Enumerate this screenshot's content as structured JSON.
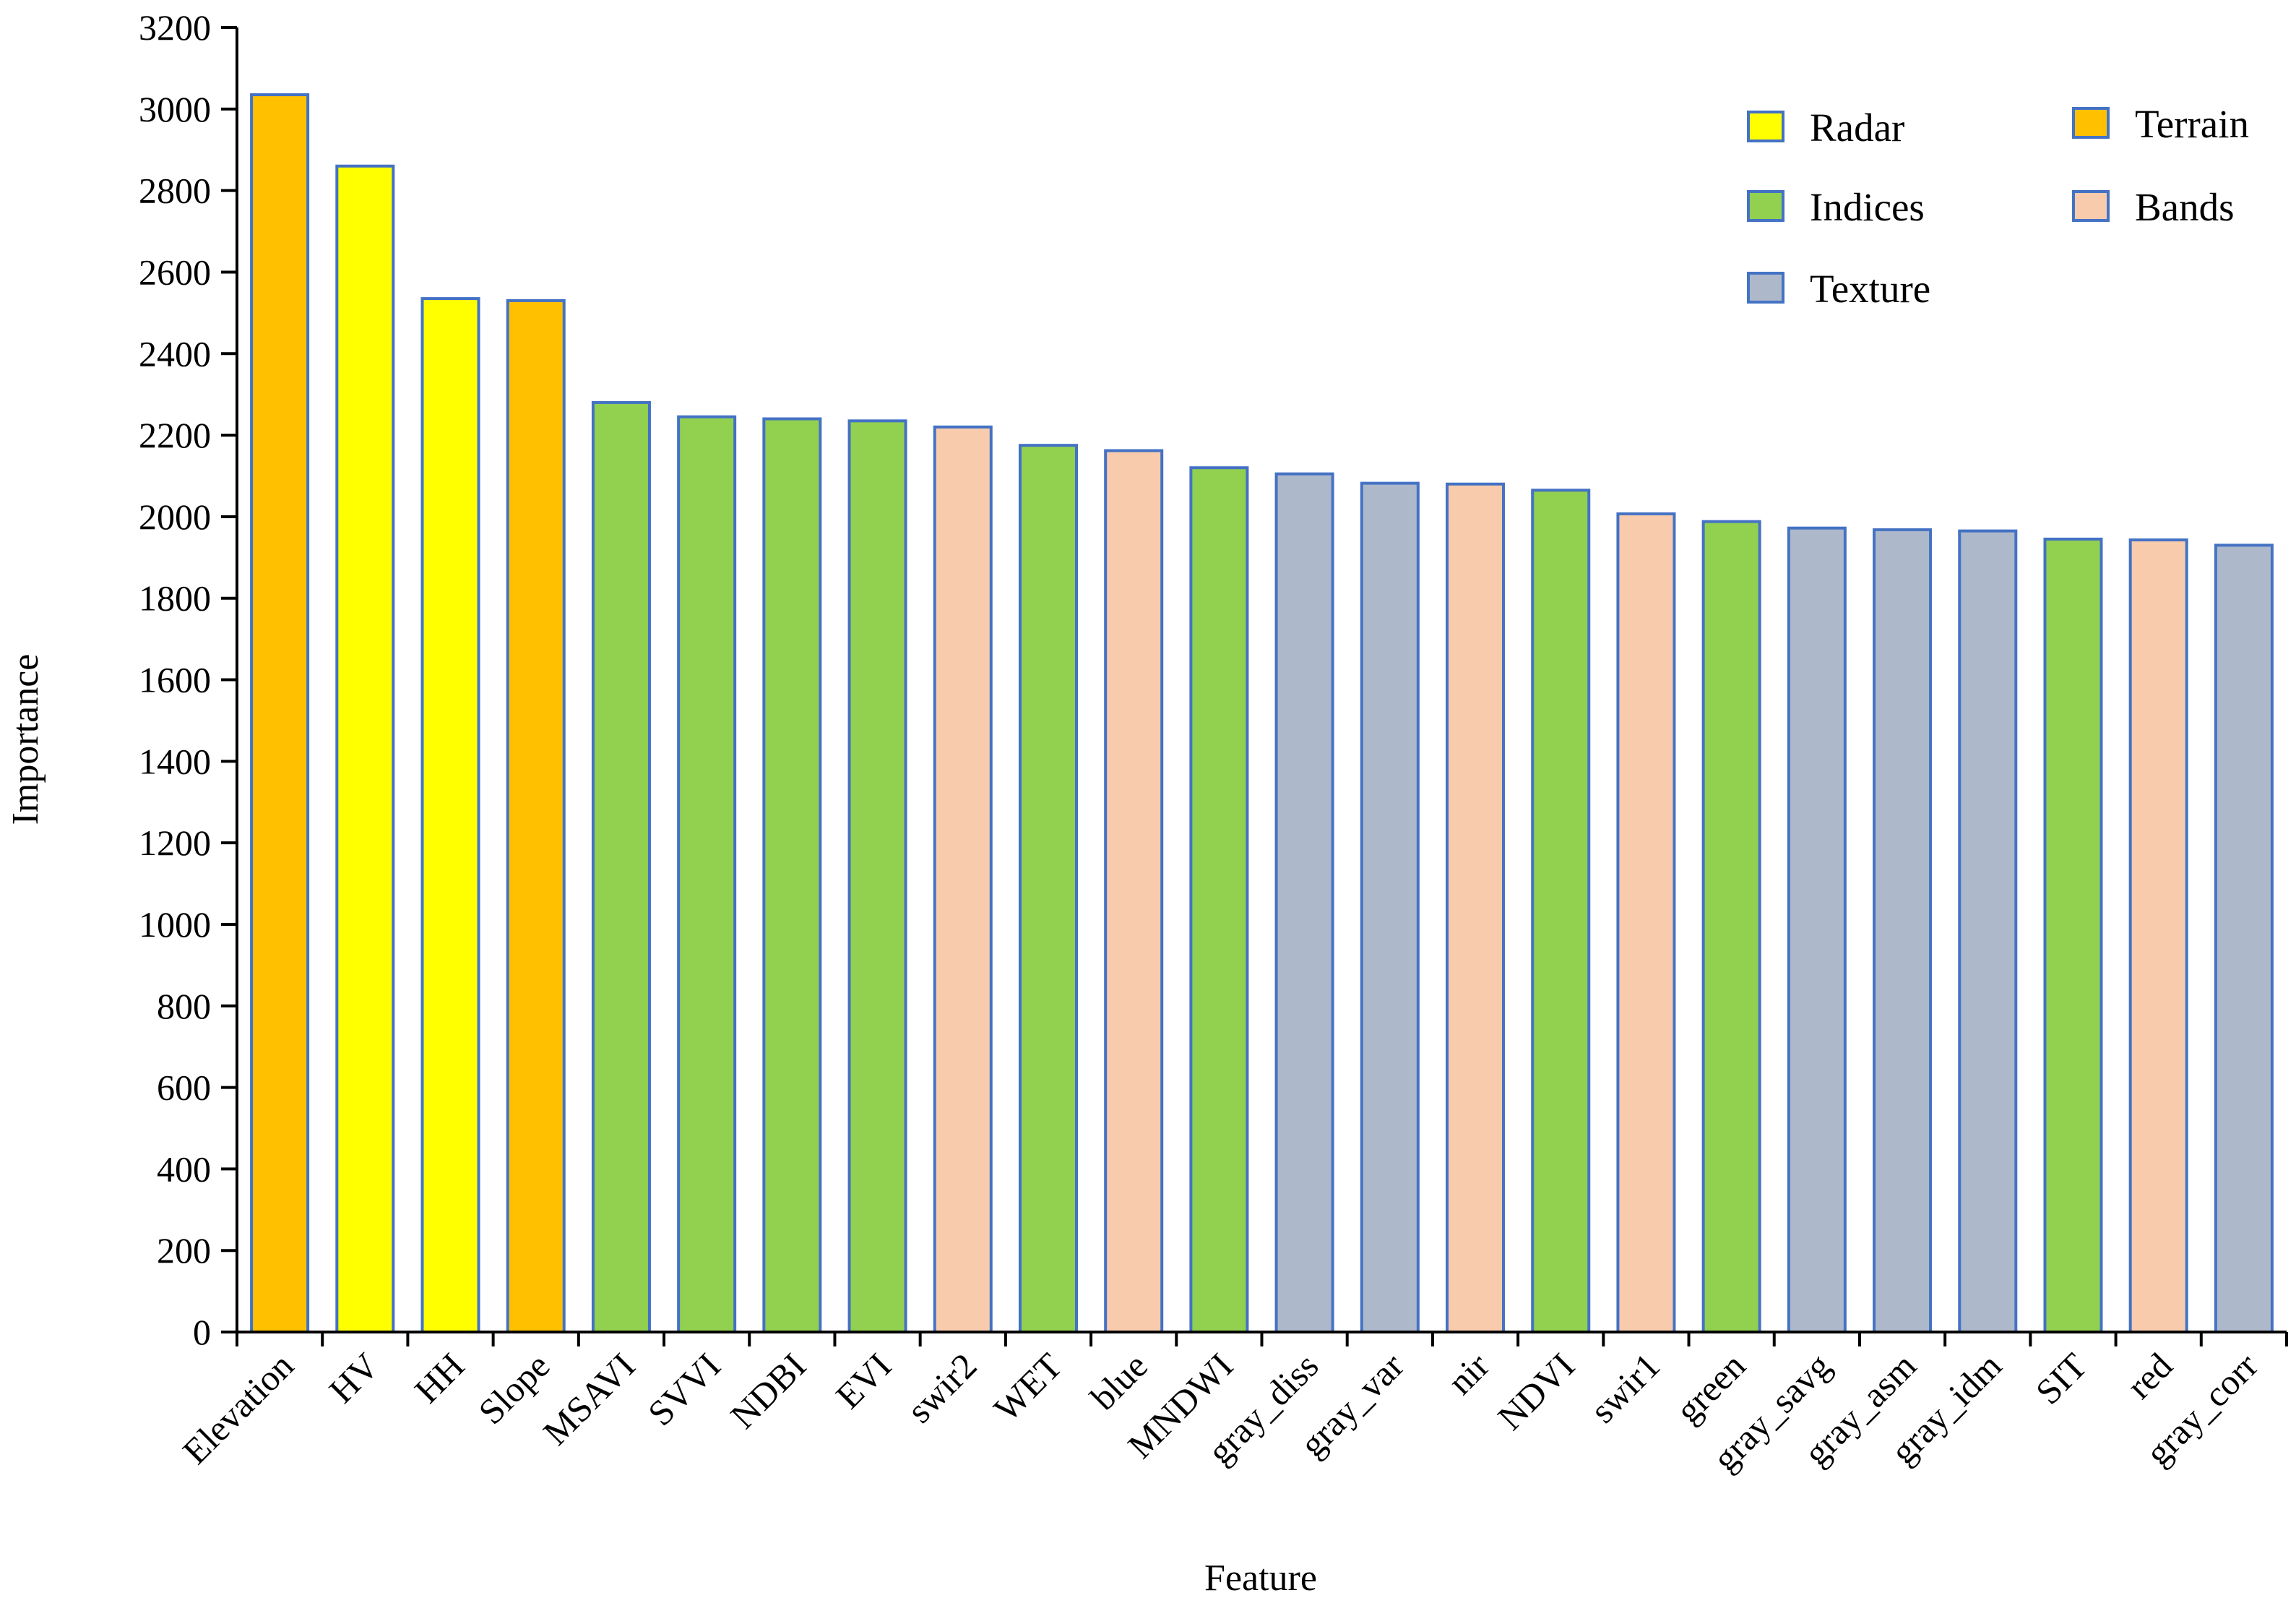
{
  "chart_data": {
    "type": "bar",
    "title": "",
    "xlabel": "Feature",
    "ylabel": "Importance",
    "ylim": [
      0,
      3200
    ],
    "yticks": [
      0,
      200,
      400,
      600,
      800,
      1000,
      1200,
      1400,
      1600,
      1800,
      2000,
      2200,
      2400,
      2600,
      2800,
      3000,
      3200
    ],
    "grid": false,
    "legend_position": "top-right",
    "categories": [
      "Elevation",
      "HV",
      "HH",
      "Slope",
      "MSAVI",
      "SVVI",
      "NDBI",
      "EVI",
      "swir2",
      "WET",
      "blue",
      "MNDWI",
      "gray_diss",
      "gray_var",
      "nir",
      "NDVI",
      "swir1",
      "green",
      "gray_savg",
      "gray_asm",
      "gray_idm",
      "SIT",
      "red",
      "gray_corr"
    ],
    "values": [
      3035,
      2860,
      2535,
      2530,
      2280,
      2245,
      2240,
      2235,
      2220,
      2175,
      2162,
      2120,
      2105,
      2082,
      2080,
      2065,
      2007,
      1988,
      1972,
      1968,
      1965,
      1945,
      1943,
      1930
    ],
    "groups": [
      "Terrain",
      "Radar",
      "Radar",
      "Terrain",
      "Indices",
      "Indices",
      "Indices",
      "Indices",
      "Bands",
      "Indices",
      "Bands",
      "Indices",
      "Texture",
      "Texture",
      "Bands",
      "Indices",
      "Bands",
      "Indices",
      "Texture",
      "Texture",
      "Texture",
      "Indices",
      "Bands",
      "Texture"
    ],
    "legend": [
      {
        "name": "Radar",
        "color": "#FFFF00"
      },
      {
        "name": "Terrain",
        "color": "#FFC000"
      },
      {
        "name": "Indices",
        "color": "#92D050"
      },
      {
        "name": "Bands",
        "color": "#F8CBAD"
      },
      {
        "name": "Texture",
        "color": "#ADB9CA"
      }
    ],
    "bar_edge_color": "#4472C4"
  }
}
